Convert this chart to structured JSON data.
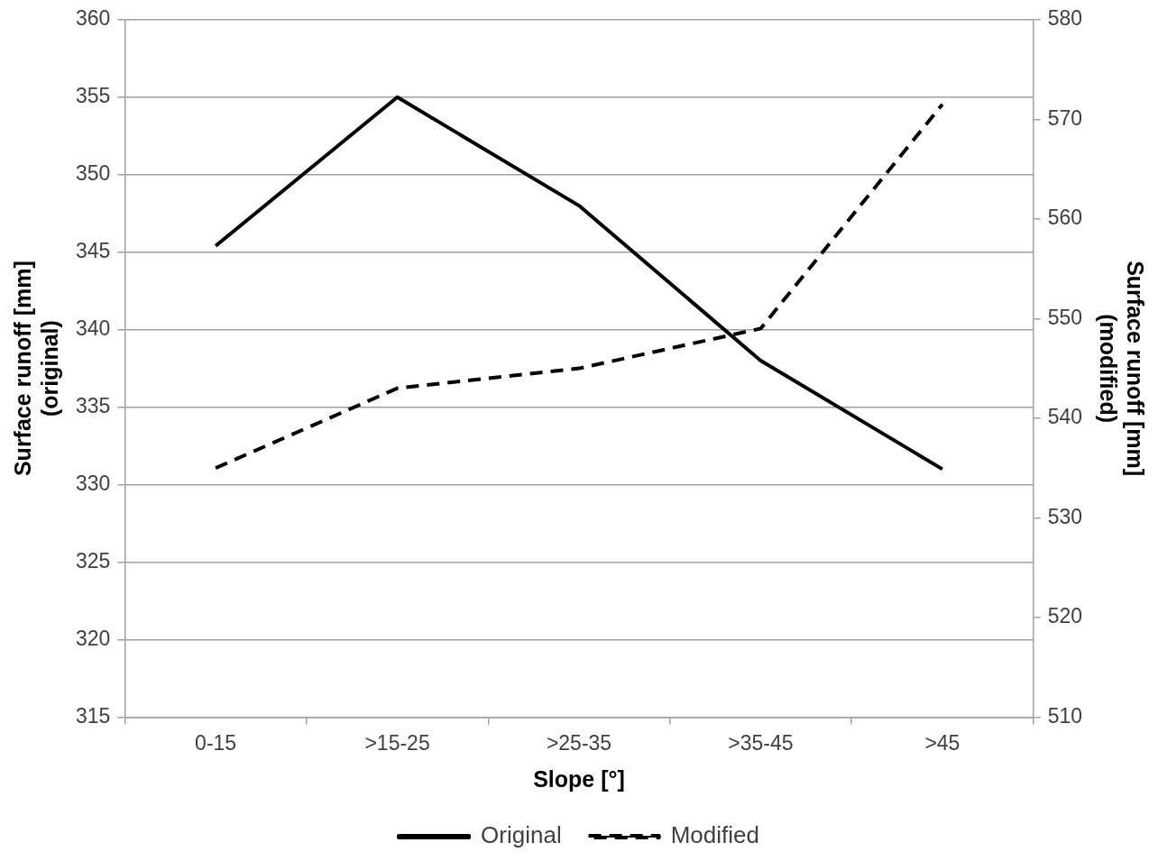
{
  "chart_data": {
    "type": "line",
    "xlabel": "Slope [°]",
    "ylabel": "Surface runoff [mm] (original)",
    "y2label": "Surface runoff [mm] (modified)",
    "categories": [
      "0-15",
      ">15-25",
      ">25-35",
      ">35-45",
      ">45"
    ],
    "series": [
      {
        "name": "Original",
        "color": "#000000",
        "line_style": "solid",
        "values": [
          345.4,
          355,
          348,
          338,
          331
        ]
      },
      {
        "name": "Modified",
        "color": "#000000",
        "line_style": "dashed",
        "axis": "y2",
        "values": [
          535,
          543,
          545,
          549,
          571.5
        ]
      }
    ],
    "ylim": [
      315,
      360
    ],
    "yticks": [
      315,
      320,
      325,
      330,
      335,
      340,
      345,
      350,
      355,
      360
    ],
    "y2lim": [
      510,
      580
    ],
    "y2ticks": [
      510,
      520,
      530,
      540,
      550,
      560,
      570,
      580
    ],
    "grid": "y",
    "legend": "bottom",
    "marker": "none"
  }
}
